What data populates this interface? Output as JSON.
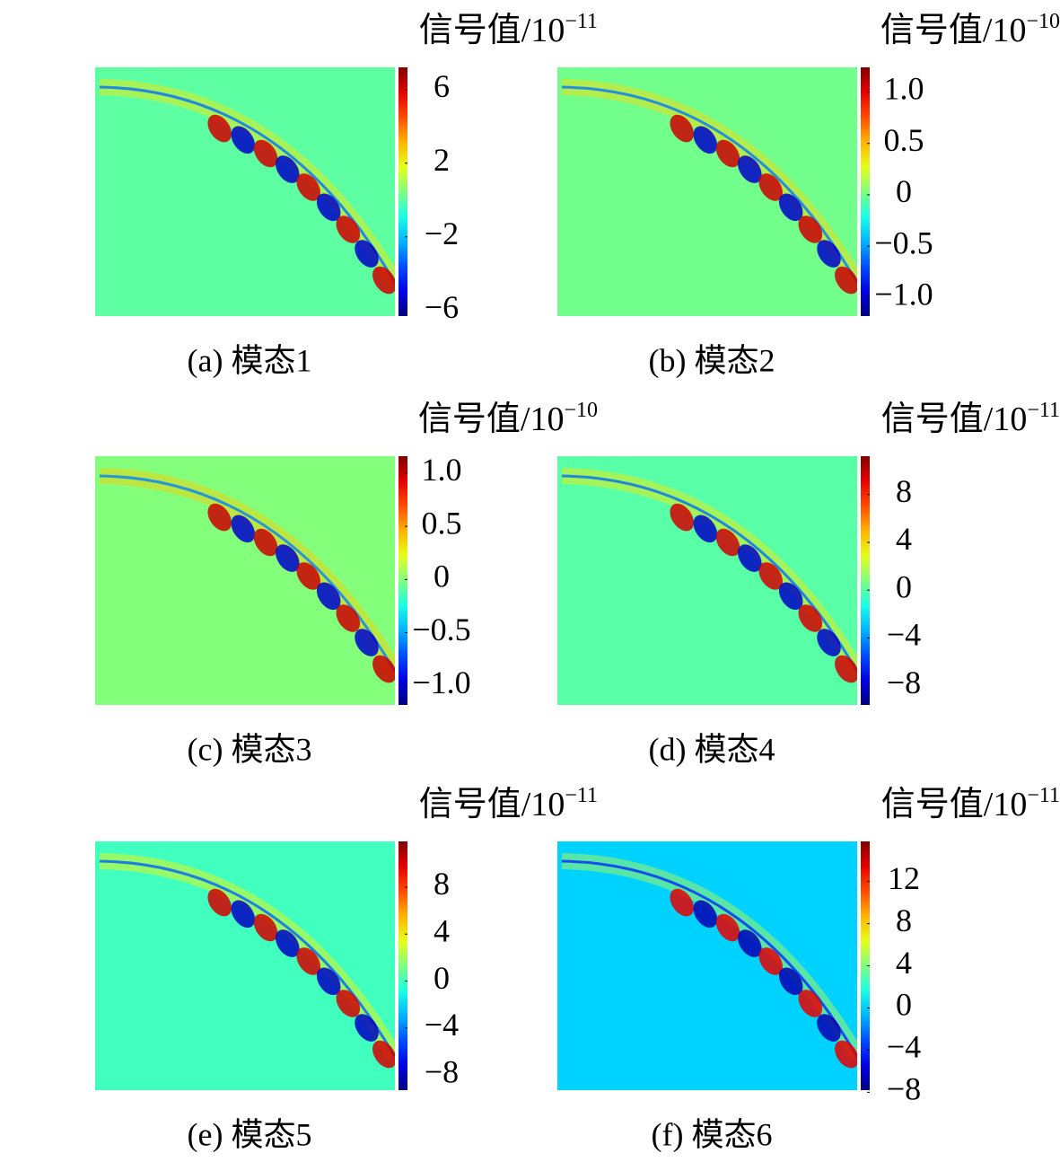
{
  "chart_data": [
    {
      "type": "heatmap",
      "colorbar_label": "信号值/10",
      "colorbar_exponent": "−11",
      "colormap": "jet",
      "clim": [
        -6.3,
        7.2
      ],
      "colorbar_ticks": [
        6,
        2,
        {
          "value": -2,
          "label": "−2"
        },
        {
          "value": -6,
          "label": "−6"
        }
      ],
      "caption": "(a) 模态1"
    },
    {
      "type": "heatmap",
      "colorbar_label": "信号值/10",
      "colorbar_exponent": "−10",
      "colormap": "jet",
      "clim": [
        -1.18,
        1.24
      ],
      "colorbar_ticks": [
        {
          "value": 1,
          "label": "1.0"
        },
        0.5,
        0,
        {
          "value": -0.5,
          "label": "−0.5"
        },
        {
          "value": -1,
          "label": "−1.0"
        }
      ],
      "caption": "(b) 模态2"
    },
    {
      "type": "heatmap",
      "colorbar_label": "信号值/10",
      "colorbar_exponent": "−10",
      "colormap": "jet",
      "clim": [
        -1.18,
        1.16
      ],
      "colorbar_ticks": [
        {
          "value": 1,
          "label": "1.0"
        },
        0.5,
        0,
        {
          "value": -0.5,
          "label": "−0.5"
        },
        {
          "value": -1,
          "label": "−1.0"
        }
      ],
      "caption": "(c) 模态3"
    },
    {
      "type": "heatmap",
      "colorbar_label": "信号值/10",
      "colorbar_exponent": "−11",
      "colormap": "jet",
      "clim": [
        -9.6,
        11.2
      ],
      "colorbar_ticks": [
        8,
        4,
        0,
        {
          "value": -4,
          "label": "−4"
        },
        {
          "value": -8,
          "label": "−8"
        }
      ],
      "caption": "(d) 模态4"
    },
    {
      "type": "heatmap",
      "colorbar_label": "信号值/10",
      "colorbar_exponent": "−11",
      "colormap": "jet",
      "clim": [
        -9.3,
        11.9
      ],
      "colorbar_ticks": [
        8,
        4,
        0,
        {
          "value": -4,
          "label": "−4"
        },
        {
          "value": -8,
          "label": "−8"
        }
      ],
      "caption": "(e) 模态5"
    },
    {
      "type": "heatmap",
      "colorbar_label": "信号值/10",
      "colorbar_exponent": "−11",
      "colormap": "jet",
      "clim": [
        -7.8,
        15.8
      ],
      "colorbar_ticks": [
        12,
        8,
        4,
        0,
        {
          "value": -4,
          "label": "−4"
        },
        {
          "value": -8,
          "label": "−8"
        }
      ],
      "caption": "(f) 模态6"
    }
  ]
}
